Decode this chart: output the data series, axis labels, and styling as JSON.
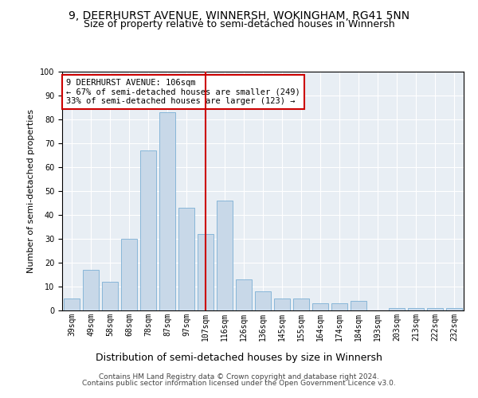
{
  "title": "9, DEERHURST AVENUE, WINNERSH, WOKINGHAM, RG41 5NN",
  "subtitle": "Size of property relative to semi-detached houses in Winnersh",
  "xlabel": "Distribution of semi-detached houses by size in Winnersh",
  "ylabel": "Number of semi-detached properties",
  "categories": [
    "39sqm",
    "49sqm",
    "58sqm",
    "68sqm",
    "78sqm",
    "87sqm",
    "97sqm",
    "107sqm",
    "116sqm",
    "126sqm",
    "136sqm",
    "145sqm",
    "155sqm",
    "164sqm",
    "174sqm",
    "184sqm",
    "193sqm",
    "203sqm",
    "213sqm",
    "222sqm",
    "232sqm"
  ],
  "values": [
    5,
    17,
    12,
    30,
    67,
    83,
    43,
    32,
    46,
    13,
    8,
    5,
    5,
    3,
    3,
    4,
    0,
    1,
    1,
    1,
    1
  ],
  "bar_color": "#c8d8e8",
  "bar_edge_color": "#7bafd4",
  "vline_index": 7,
  "vline_color": "#cc0000",
  "annotation_text": "9 DEERHURST AVENUE: 106sqm\n← 67% of semi-detached houses are smaller (249)\n33% of semi-detached houses are larger (123) →",
  "annotation_box_color": "#ffffff",
  "annotation_box_edge": "#cc0000",
  "ylim": [
    0,
    100
  ],
  "yticks": [
    0,
    10,
    20,
    30,
    40,
    50,
    60,
    70,
    80,
    90,
    100
  ],
  "background_color": "#e8eef4",
  "footer_line1": "Contains HM Land Registry data © Crown copyright and database right 2024.",
  "footer_line2": "Contains public sector information licensed under the Open Government Licence v3.0.",
  "title_fontsize": 10,
  "subtitle_fontsize": 9,
  "xlabel_fontsize": 9,
  "ylabel_fontsize": 8,
  "tick_fontsize": 7,
  "annotation_fontsize": 7.5,
  "footer_fontsize": 6.5
}
